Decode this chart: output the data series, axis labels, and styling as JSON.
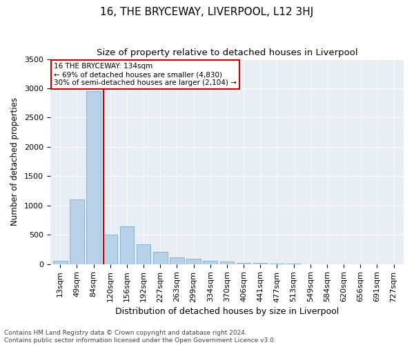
{
  "title": "16, THE BRYCEWAY, LIVERPOOL, L12 3HJ",
  "subtitle": "Size of property relative to detached houses in Liverpool",
  "xlabel": "Distribution of detached houses by size in Liverpool",
  "ylabel": "Number of detached properties",
  "categories": [
    "13sqm",
    "49sqm",
    "84sqm",
    "120sqm",
    "156sqm",
    "192sqm",
    "227sqm",
    "263sqm",
    "299sqm",
    "334sqm",
    "370sqm",
    "406sqm",
    "441sqm",
    "477sqm",
    "513sqm",
    "549sqm",
    "584sqm",
    "620sqm",
    "656sqm",
    "691sqm",
    "727sqm"
  ],
  "values": [
    55,
    1100,
    2950,
    500,
    650,
    340,
    210,
    110,
    95,
    55,
    40,
    25,
    15,
    8,
    5,
    2,
    1,
    1,
    0,
    0,
    0
  ],
  "bar_color": "#b8d0e8",
  "bar_edge_color": "#7aadd0",
  "vline_x": 3,
  "vline_color": "#cc0000",
  "ylim": [
    0,
    3500
  ],
  "yticks": [
    0,
    500,
    1000,
    1500,
    2000,
    2500,
    3000,
    3500
  ],
  "annotation_text": "16 THE BRYCEWAY: 134sqm\n← 69% of detached houses are smaller (4,830)\n30% of semi-detached houses are larger (2,104) →",
  "annotation_box_facecolor": "#ffffff",
  "annotation_box_edgecolor": "#cc0000",
  "footer_text": "Contains HM Land Registry data © Crown copyright and database right 2024.\nContains public sector information licensed under the Open Government Licence v3.0.",
  "bg_color": "#e8eef4",
  "title_fontsize": 11,
  "subtitle_fontsize": 9.5,
  "xlabel_fontsize": 9,
  "ylabel_fontsize": 8.5,
  "tick_fontsize": 8,
  "footer_fontsize": 6.5
}
